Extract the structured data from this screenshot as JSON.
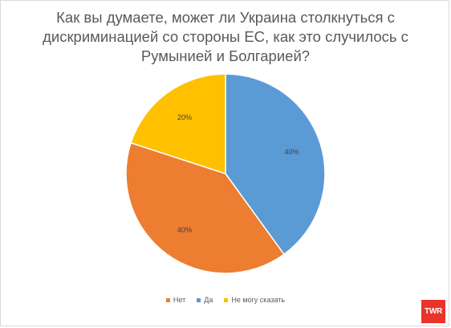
{
  "chart_data": {
    "type": "pie",
    "title": "Как вы думаете, может ли Украина столкнуться с дискриминацией со стороны ЕС, как это случилось с Румынией и Болгарией?",
    "categories": [
      "Нет",
      "Да",
      "Не могу сказать"
    ],
    "values": [
      40,
      40,
      20
    ],
    "labels": [
      "40%",
      "40%",
      "20%"
    ],
    "colors": [
      "#ed7d31",
      "#5b9bd5",
      "#ffc000"
    ],
    "legend_position": "bottom"
  },
  "logo": {
    "text": "TWR",
    "color": "#e8342a"
  }
}
